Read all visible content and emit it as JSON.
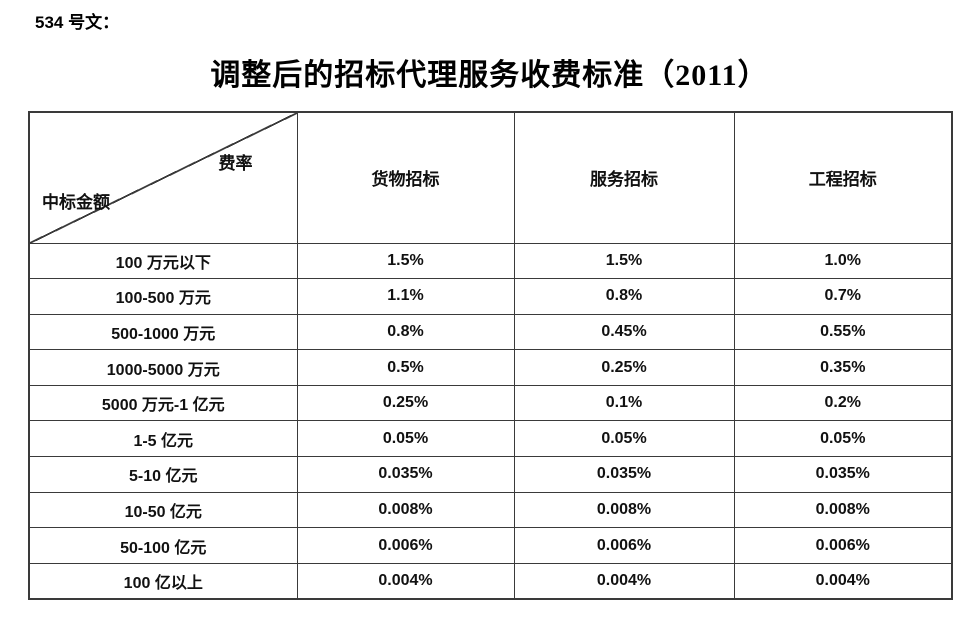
{
  "doc_label": "534 号文：",
  "title": "调整后的招标代理服务收费标准（2011）",
  "colors": {
    "text": "#111111",
    "border": "#3a3a3a",
    "background": "#ffffff"
  },
  "table": {
    "corner_top_right": "费率",
    "corner_bottom_left": "中标金额",
    "columns": [
      "货物招标",
      "服务招标",
      "工程招标"
    ],
    "rows": [
      {
        "label": "100 万元以下",
        "values": [
          "1.5%",
          "1.5%",
          "1.0%"
        ]
      },
      {
        "label": "100-500 万元",
        "values": [
          "1.1%",
          "0.8%",
          "0.7%"
        ]
      },
      {
        "label": "500-1000 万元",
        "values": [
          "0.8%",
          "0.45%",
          "0.55%"
        ]
      },
      {
        "label": "1000-5000 万元",
        "values": [
          "0.5%",
          "0.25%",
          "0.35%"
        ]
      },
      {
        "label": "5000 万元-1 亿元",
        "values": [
          "0.25%",
          "0.1%",
          "0.2%"
        ]
      },
      {
        "label": "1-5 亿元",
        "values": [
          "0.05%",
          "0.05%",
          "0.05%"
        ]
      },
      {
        "label": "5-10 亿元",
        "values": [
          "0.035%",
          "0.035%",
          "0.035%"
        ]
      },
      {
        "label": "10-50 亿元",
        "values": [
          "0.008%",
          "0.008%",
          "0.008%"
        ]
      },
      {
        "label": "50-100 亿元",
        "values": [
          "0.006%",
          "0.006%",
          "0.006%"
        ]
      },
      {
        "label": "100 亿以上",
        "values": [
          "0.004%",
          "0.004%",
          "0.004%"
        ]
      }
    ]
  }
}
